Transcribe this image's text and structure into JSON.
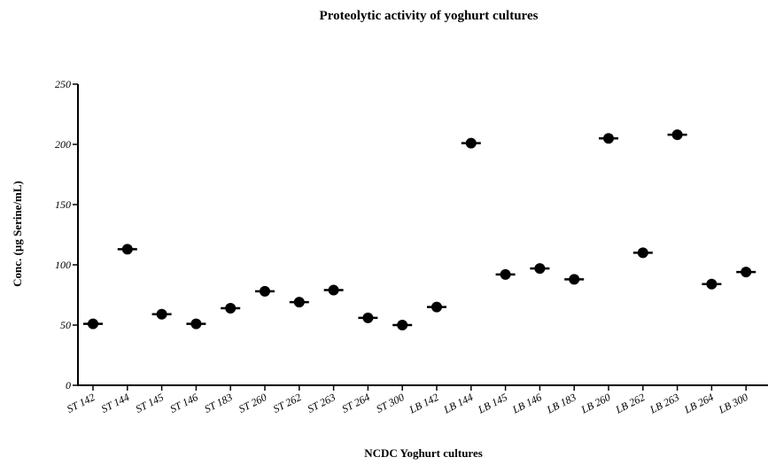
{
  "chart_data": {
    "type": "scatter",
    "title": "Proteolytic activity of yoghurt cultures",
    "xlabel": "NCDC Yoghurt cultures",
    "ylabel": "Conc. (µg Serine/mL)",
    "ylim": [
      0,
      250
    ],
    "yticks": [
      "0",
      "50",
      "100",
      "150",
      "200",
      "250"
    ],
    "categories": [
      "ST 142",
      "ST 144",
      "ST 145",
      "ST 146",
      "ST 183",
      "ST 260",
      "ST 262",
      "ST 263",
      "ST 264",
      "ST 300",
      "LB 142",
      "LB 144",
      "LB 145",
      "LB 146",
      "LB 183",
      "LB 260",
      "LB 262",
      "LB 263",
      "LB 264",
      "LB 300"
    ],
    "values": [
      51,
      113,
      59,
      51,
      64,
      78,
      69,
      79,
      56,
      50,
      65,
      201,
      92,
      97,
      88,
      205,
      110,
      208,
      84,
      94
    ],
    "grid": false,
    "legend": "none",
    "marker_color": "#000000"
  }
}
